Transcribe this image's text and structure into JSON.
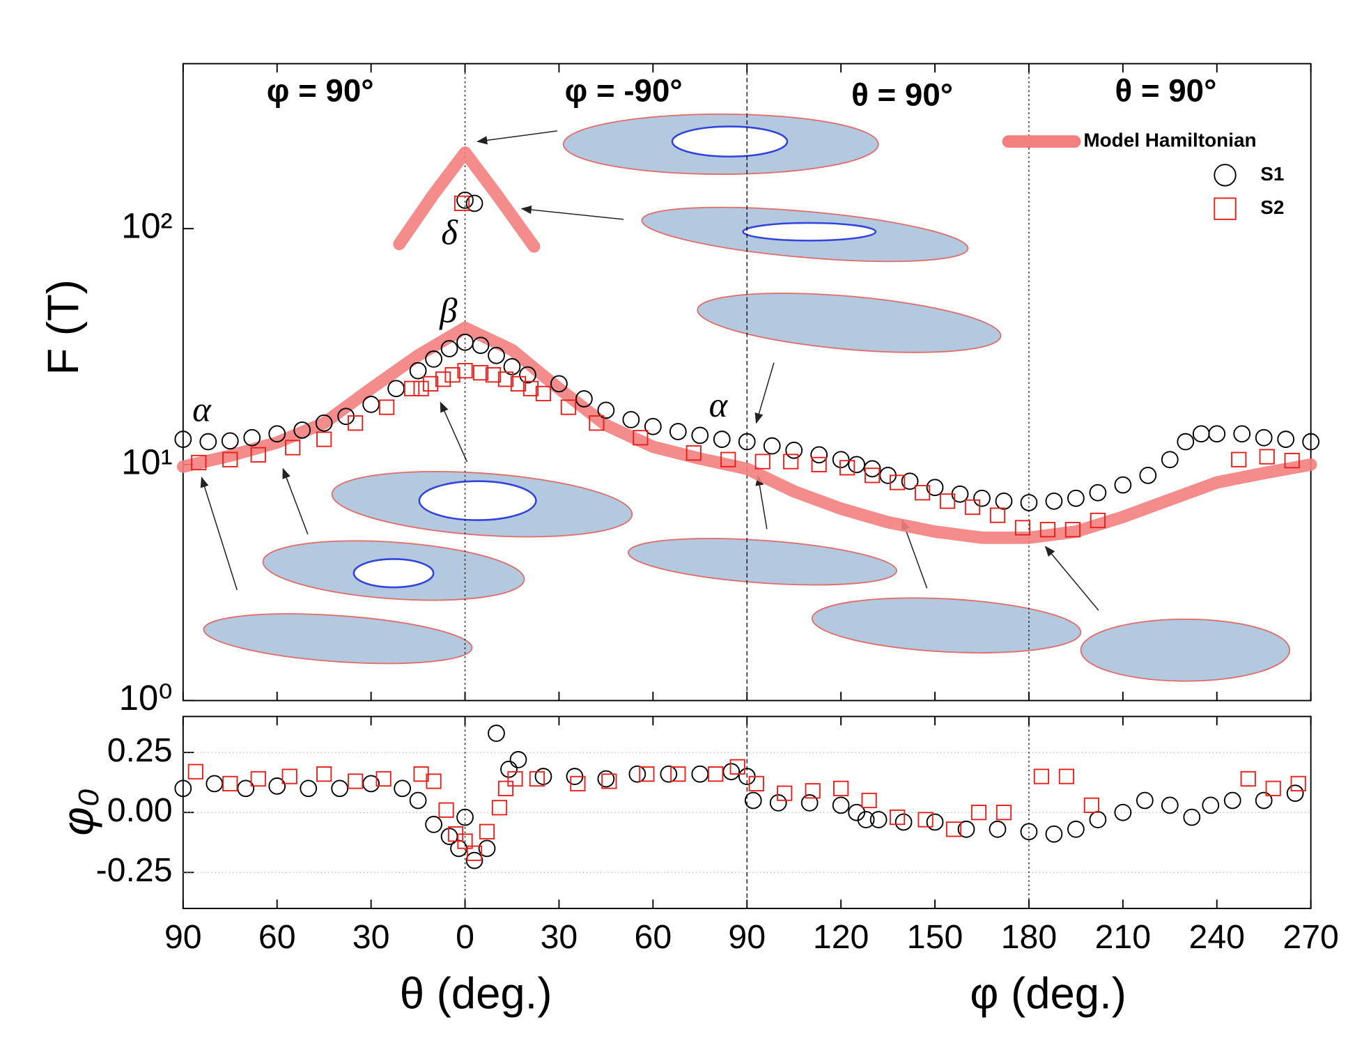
{
  "chart_data": [
    {
      "type": "scatter",
      "yscale": "log",
      "ylim": [
        1,
        500
      ],
      "yticks": [
        {
          "value": 1,
          "label": "10⁰"
        },
        {
          "value": 10,
          "label": "10¹"
        },
        {
          "value": 100,
          "label": "10²"
        }
      ],
      "xlim": [
        0,
        360
      ],
      "ylabel": "F (T)",
      "legend": "upper right",
      "annotations": [
        "φ = 90°",
        "φ = -90°",
        "θ = 90°",
        "θ = 90°",
        "α",
        "β",
        "δ",
        "α"
      ],
      "series": [
        {
          "name": "Model Hamiltonian",
          "kind": "line",
          "color": "#f47f7f",
          "x": [
            0,
            15,
            30,
            45,
            60,
            75,
            90,
            105,
            120,
            135,
            150,
            165,
            180,
            195,
            210,
            225,
            240,
            255,
            270,
            285,
            300,
            315,
            330,
            345,
            360,
            null,
            69,
            80,
            90,
            100,
            112
          ],
          "values": [
            9.8,
            10.9,
            12.4,
            15,
            21,
            29,
            38,
            30.6,
            21,
            14.7,
            11.9,
            10.6,
            9.6,
            7.7,
            6.5,
            5.7,
            5.2,
            4.9,
            4.9,
            5.2,
            6.0,
            7.1,
            8.4,
            9.2,
            10,
            null,
            86,
            140,
            210,
            140,
            84
          ]
        },
        {
          "name": "S1",
          "kind": "circle",
          "color": "#000000",
          "x": [
            0,
            8,
            15,
            22,
            30,
            38,
            45,
            52,
            60,
            68,
            75,
            80,
            85,
            90,
            95,
            100,
            105,
            110,
            120,
            128,
            135,
            143,
            150,
            158,
            165,
            172,
            180,
            188,
            195,
            203,
            210,
            215,
            220,
            225,
            232,
            240,
            248,
            255,
            262,
            270,
            278,
            285,
            292,
            300,
            308,
            315,
            320,
            325,
            330,
            338,
            345,
            352,
            360,
            90,
            93
          ],
          "values": [
            12.8,
            12.5,
            12.6,
            13,
            13.5,
            14,
            15,
            16,
            18,
            21,
            25,
            28,
            31,
            33,
            32,
            29,
            26,
            24,
            22,
            19,
            17,
            15.5,
            14.5,
            13.8,
            13.3,
            12.8,
            12.5,
            12,
            11.5,
            11,
            10.5,
            10,
            9.6,
            9,
            8.5,
            8,
            7.5,
            7.2,
            7,
            6.9,
            7,
            7.2,
            7.6,
            8.2,
            9,
            10.5,
            12.5,
            13.5,
            13.5,
            13.5,
            13,
            12.8,
            12.5,
            132,
            128
          ]
        },
        {
          "name": "S2",
          "kind": "square",
          "color": "#e8201c",
          "x": [
            5,
            15,
            24,
            35,
            45,
            55,
            65,
            73,
            76,
            79,
            83,
            86,
            90,
            95,
            99,
            103,
            107,
            111,
            115,
            123,
            132,
            146,
            163,
            174,
            185,
            194,
            203,
            212,
            220,
            228,
            236,
            244,
            252,
            260,
            268,
            276,
            284,
            292,
            337,
            346,
            354,
            89
          ],
          "values": [
            10.2,
            10.5,
            11,
            11.8,
            12.8,
            15,
            17.5,
            21,
            21,
            22,
            23,
            24,
            25,
            24.5,
            24,
            23,
            22,
            21,
            20,
            17.5,
            15,
            13,
            11.2,
            10.5,
            10.3,
            10.3,
            10,
            9.7,
            9,
            8.4,
            7.6,
            7,
            6.6,
            6.1,
            5.4,
            5.3,
            5.3,
            5.8,
            10.5,
            10.8,
            10.4,
            128
          ]
        }
      ]
    },
    {
      "type": "scatter",
      "ylim": [
        -0.4,
        0.4
      ],
      "yticks": [
        -0.25,
        {
          "value": 0,
          "label": "0.00"
        },
        0.25
      ],
      "grid": true,
      "xlim": [
        0,
        360
      ],
      "xticks": [
        {
          "value": 0,
          "label": "90"
        },
        {
          "value": 30,
          "label": "60"
        },
        {
          "value": 60,
          "label": "30"
        },
        {
          "value": 90,
          "label": "0"
        },
        {
          "value": 120,
          "label": "30"
        },
        {
          "value": 150,
          "label": "60"
        },
        {
          "value": 180,
          "label": "90"
        },
        {
          "value": 210,
          "label": "120"
        },
        {
          "value": 240,
          "label": "150"
        },
        {
          "value": 270,
          "label": "180"
        },
        {
          "value": 300,
          "label": "210"
        },
        {
          "value": 330,
          "label": "240"
        },
        {
          "value": 360,
          "label": "270"
        }
      ],
      "ylabel": "φ₀",
      "xlabel": "θ (deg.)",
      "xlabel2": "φ (deg.)",
      "series": [
        {
          "kind": "circle",
          "color": "#000000",
          "x": [
            0,
            10,
            20,
            30,
            40,
            50,
            60,
            70,
            75,
            80,
            85,
            88,
            90,
            93,
            97,
            100,
            104,
            107,
            115,
            125,
            135,
            145,
            155,
            165,
            175,
            180,
            182,
            190,
            200,
            210,
            215,
            218,
            222,
            230,
            240,
            250,
            260,
            270,
            278,
            285,
            292,
            300,
            307,
            315,
            322,
            328,
            335,
            345,
            355
          ],
          "values": [
            0.1,
            0.12,
            0.1,
            0.11,
            0.1,
            0.1,
            0.12,
            0.1,
            0.05,
            -0.05,
            -0.1,
            -0.15,
            -0.02,
            -0.2,
            -0.15,
            0.33,
            0.18,
            0.22,
            0.15,
            0.15,
            0.14,
            0.16,
            0.16,
            0.16,
            0.17,
            0.15,
            0.05,
            0.04,
            0.04,
            0.03,
            0.0,
            -0.03,
            -0.03,
            -0.04,
            -0.04,
            -0.07,
            -0.07,
            -0.08,
            -0.09,
            -0.07,
            -0.03,
            0.0,
            0.05,
            0.03,
            -0.02,
            0.03,
            0.05,
            0.05,
            0.08
          ]
        },
        {
          "kind": "square",
          "color": "#e8201c",
          "x": [
            4,
            15,
            24,
            34,
            45,
            55,
            64,
            76,
            80,
            84,
            87,
            90,
            93,
            97,
            101,
            103,
            106,
            113,
            126,
            136,
            148,
            158,
            170,
            177,
            183,
            192,
            201,
            210,
            219,
            228,
            237,
            246,
            254,
            262,
            274,
            282,
            290,
            340,
            348,
            356
          ],
          "values": [
            0.17,
            0.12,
            0.14,
            0.15,
            0.16,
            0.13,
            0.14,
            0.16,
            0.13,
            0.01,
            -0.09,
            -0.12,
            -0.17,
            -0.08,
            0.02,
            0.1,
            0.14,
            0.14,
            0.12,
            0.13,
            0.16,
            0.16,
            0.16,
            0.19,
            0.12,
            0.08,
            0.09,
            0.1,
            0.05,
            -0.02,
            -0.03,
            -0.07,
            0.0,
            0.0,
            0.15,
            0.15,
            0.03,
            0.14,
            0.1,
            0.12
          ]
        }
      ]
    }
  ]
}
